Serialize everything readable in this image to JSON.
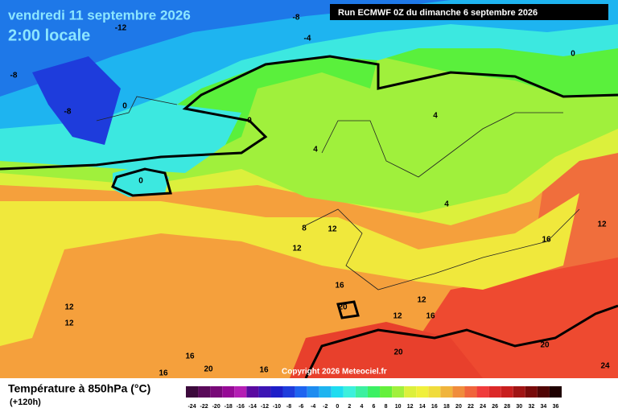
{
  "header": {
    "date": "vendredi 11 septembre 2026",
    "time": "2:00 locale",
    "run": "Run ECMWF 0Z du dimanche 6 septembre 2026"
  },
  "map": {
    "contour_labels": [
      -12,
      -8,
      -4,
      -8,
      -8,
      0,
      0,
      0,
      0,
      4,
      4,
      4,
      8,
      12,
      12,
      12,
      16,
      16,
      20,
      12,
      12,
      16,
      12,
      12,
      16,
      20,
      16,
      16,
      20,
      20,
      24
    ],
    "copyright": "Copyright 2026 Meteociel.fr"
  },
  "legend": {
    "title": "Température à 850hPa (°C)",
    "lead": "(+120h)",
    "ticks": [
      -24,
      -22,
      -20,
      -18,
      -16,
      -14,
      -12,
      -10,
      -8,
      -6,
      -4,
      -2,
      0,
      2,
      4,
      6,
      8,
      10,
      12,
      14,
      16,
      18,
      20,
      22,
      24,
      26,
      28,
      30,
      32,
      34,
      36
    ],
    "colors": [
      "#3c0a3c",
      "#5a0a5a",
      "#780a78",
      "#960a96",
      "#b41eb4",
      "#5a0aa0",
      "#3c14b4",
      "#1e1ec8",
      "#1e3cdc",
      "#1e64f0",
      "#1e8cf0",
      "#1eb4f0",
      "#1edcf0",
      "#3cf0dc",
      "#3cf0a0",
      "#3cf064",
      "#64f03c",
      "#a0f03c",
      "#dcf03c",
      "#f0f03c",
      "#f0dc3c",
      "#f0b43c",
      "#f08c3c",
      "#f0643c",
      "#f03c3c",
      "#dc2828",
      "#c81e1e",
      "#a01414",
      "#780a0a",
      "#500505",
      "#1e0000"
    ]
  }
}
